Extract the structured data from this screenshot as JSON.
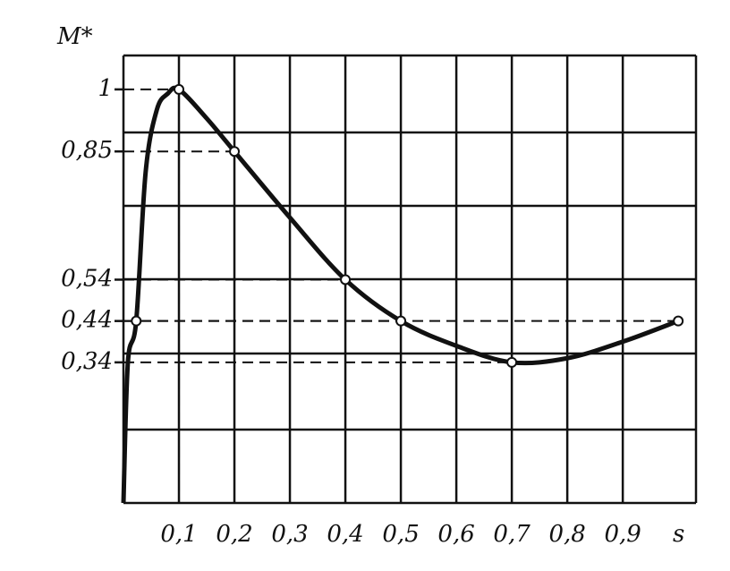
{
  "chart_data": {
    "type": "line",
    "y_label": "M*",
    "x_label": "s",
    "x": [
      0,
      0.008,
      0.023,
      0.04,
      0.06,
      0.08,
      0.1,
      0.15,
      0.2,
      0.3,
      0.4,
      0.5,
      0.6,
      0.7,
      0.8,
      0.9,
      1.0
    ],
    "values": [
      0,
      0.34,
      0.44,
      0.8,
      0.95,
      0.99,
      1,
      0.93,
      0.85,
      0.69,
      0.54,
      0.44,
      0.38,
      0.34,
      0.35,
      0.39,
      0.44
    ],
    "markers": {
      "x": [
        0.023,
        0.1,
        0.2,
        0.4,
        0.5,
        0.7,
        1.0
      ],
      "values": [
        0.44,
        1,
        0.85,
        0.54,
        0.44,
        0.34,
        0.44
      ]
    },
    "color": "#111",
    "xlim": [
      0,
      1.032
    ],
    "ylim": [
      0,
      1.082
    ],
    "xticks": [
      {
        "value": 0.1,
        "label": "0,1"
      },
      {
        "value": 0.2,
        "label": "0,2"
      },
      {
        "value": 0.3,
        "label": "0,3"
      },
      {
        "value": 0.4,
        "label": "0,4"
      },
      {
        "value": 0.5,
        "label": "0,5"
      },
      {
        "value": 0.6,
        "label": "0,6"
      },
      {
        "value": 0.7,
        "label": "0,7"
      },
      {
        "value": 0.8,
        "label": "0,8"
      },
      {
        "value": 0.9,
        "label": "0,9"
      }
    ],
    "yticks": [
      1,
      {
        "value": 0.85,
        "label": "0,85"
      },
      {
        "value": 0.54,
        "label": "0,54"
      },
      {
        "value": 0.44,
        "label": "0,44"
      },
      {
        "value": 0.34,
        "label": "0,34"
      }
    ],
    "grid": true
  }
}
